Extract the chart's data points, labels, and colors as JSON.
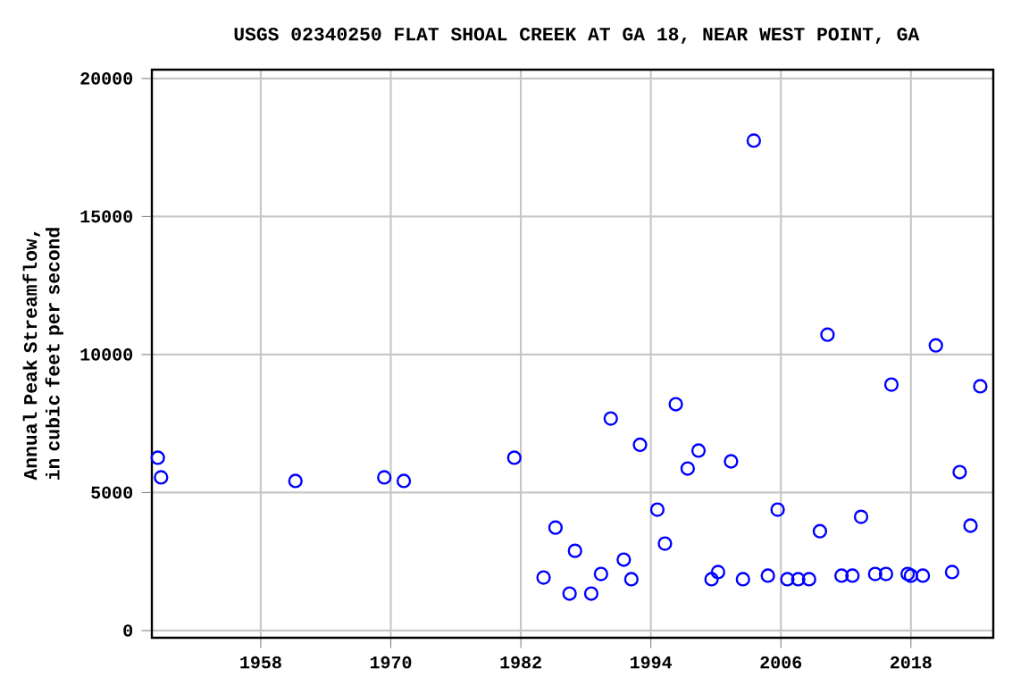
{
  "chart_data": {
    "type": "scatter",
    "title": "USGS 02340250 FLAT SHOAL CREEK AT GA 18, NEAR WEST POINT, GA",
    "ylabel": "Annual Peak Streamflow, in cubic feet per second",
    "x": [
      1948.5,
      1948.8,
      1961.2,
      1969.4,
      1971.2,
      1981.4,
      1984.1,
      1985.2,
      1986.5,
      1987.0,
      1988.5,
      1989.4,
      1990.3,
      1991.5,
      1992.2,
      1993.0,
      1994.6,
      1995.3,
      1996.3,
      1997.4,
      1998.4,
      1999.6,
      2000.2,
      2001.4,
      2002.5,
      2003.5,
      2004.8,
      2005.7,
      2006.6,
      2007.6,
      2008.6,
      2009.6,
      2010.3,
      2011.6,
      2012.6,
      2013.4,
      2014.7,
      2015.7,
      2016.2,
      2017.7,
      2018.0,
      2019.1,
      2020.3,
      2021.8,
      2022.5,
      2023.5,
      2024.4
    ],
    "values": [
      6260,
      5550,
      5420,
      5550,
      5420,
      6260,
      1920,
      3730,
      1340,
      2890,
      1340,
      2050,
      7680,
      2570,
      1860,
      6730,
      4380,
      3150,
      8200,
      5870,
      6520,
      1860,
      2120,
      6130,
      1860,
      17750,
      1990,
      4380,
      1860,
      1860,
      1860,
      3600,
      10720,
      1990,
      1990,
      4120,
      2050,
      2050,
      8910,
      2050,
      1990,
      1990,
      10330,
      2120,
      5740,
      3800,
      8850
    ],
    "color": "#0000ff",
    "marker": "circle",
    "xlim": [
      1947.95,
      2025.6
    ],
    "ylim": [
      -260,
      20320
    ],
    "xticks": [
      1958,
      1970,
      1982,
      1994,
      2006,
      2018
    ],
    "yticks": [
      0,
      5000,
      10000,
      15000,
      20000
    ],
    "grid": true
  }
}
